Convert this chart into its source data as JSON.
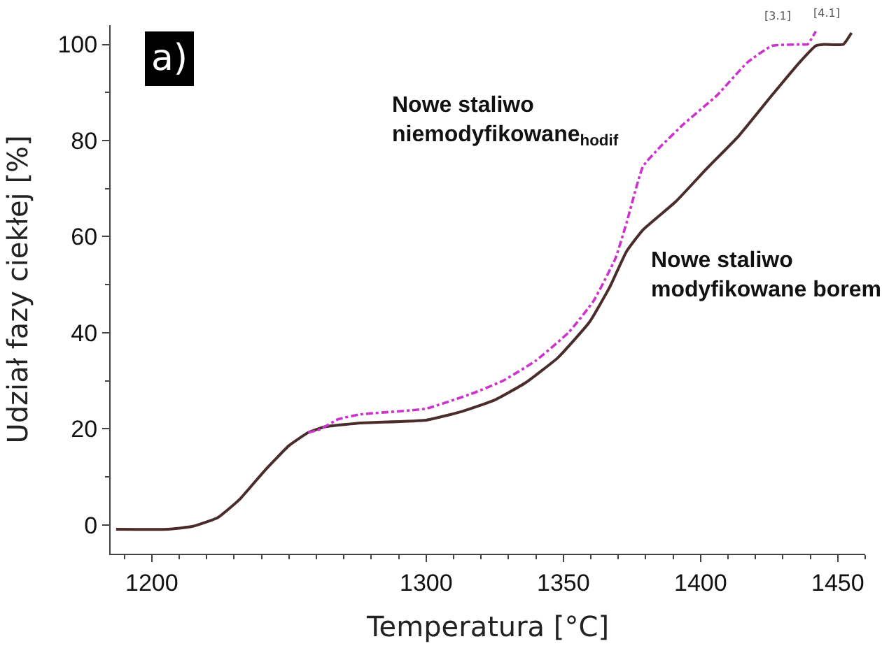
{
  "chart_data": {
    "type": "line",
    "xlabel": "Temperatura [°C]",
    "ylabel": "Udział fazy ciekłej [%]",
    "xlim": [
      1185,
      1460
    ],
    "ylim": [
      -6,
      104
    ],
    "xticks": [
      1200,
      1300,
      1350,
      1400,
      1450
    ],
    "yticks": [
      0,
      20,
      40,
      60,
      80,
      100
    ],
    "legend": false,
    "annotations": [
      "a)",
      "[3.1]",
      "[4.1]"
    ],
    "series": [
      {
        "name": "Nowe staliwo\nniemodyfikowane$_{hodif}$",
        "color": "#cc33cc",
        "line_style": "dashed",
        "x": [
          1257,
          1261,
          1268,
          1276,
          1300,
          1317,
          1328,
          1340,
          1352,
          1361,
          1369,
          1373,
          1379,
          1385,
          1394,
          1406,
          1417,
          1426,
          1437,
          1439,
          1442
        ],
        "values": [
          19.2,
          19.8,
          22,
          23,
          24.2,
          27.4,
          30,
          34.2,
          40.1,
          46.6,
          55.5,
          62.8,
          74.6,
          78.5,
          83.5,
          89.4,
          96.2,
          99.7,
          100,
          100,
          102.7
        ]
      },
      {
        "name": "Nowe staliwo\nmodyfikowane borem",
        "color": "#4a2c2c",
        "line_style": "solid",
        "x": [
          1187,
          1206,
          1215,
          1224,
          1232,
          1241,
          1250,
          1257,
          1263,
          1276,
          1300,
          1313,
          1325,
          1336,
          1348,
          1359.5,
          1367,
          1373,
          1379,
          1391,
          1402,
          1414,
          1426,
          1436,
          1442,
          1445,
          1452,
          1455
        ],
        "values": [
          -0.9,
          -0.9,
          -0.3,
          1.5,
          5.3,
          11.2,
          16.5,
          19.2,
          20.4,
          21.2,
          21.8,
          23.6,
          26,
          29.5,
          34.8,
          42.2,
          49.6,
          56.9,
          61.4,
          67.3,
          74,
          81,
          89.4,
          96.2,
          99.7,
          100,
          100,
          102.4
        ]
      }
    ]
  }
}
